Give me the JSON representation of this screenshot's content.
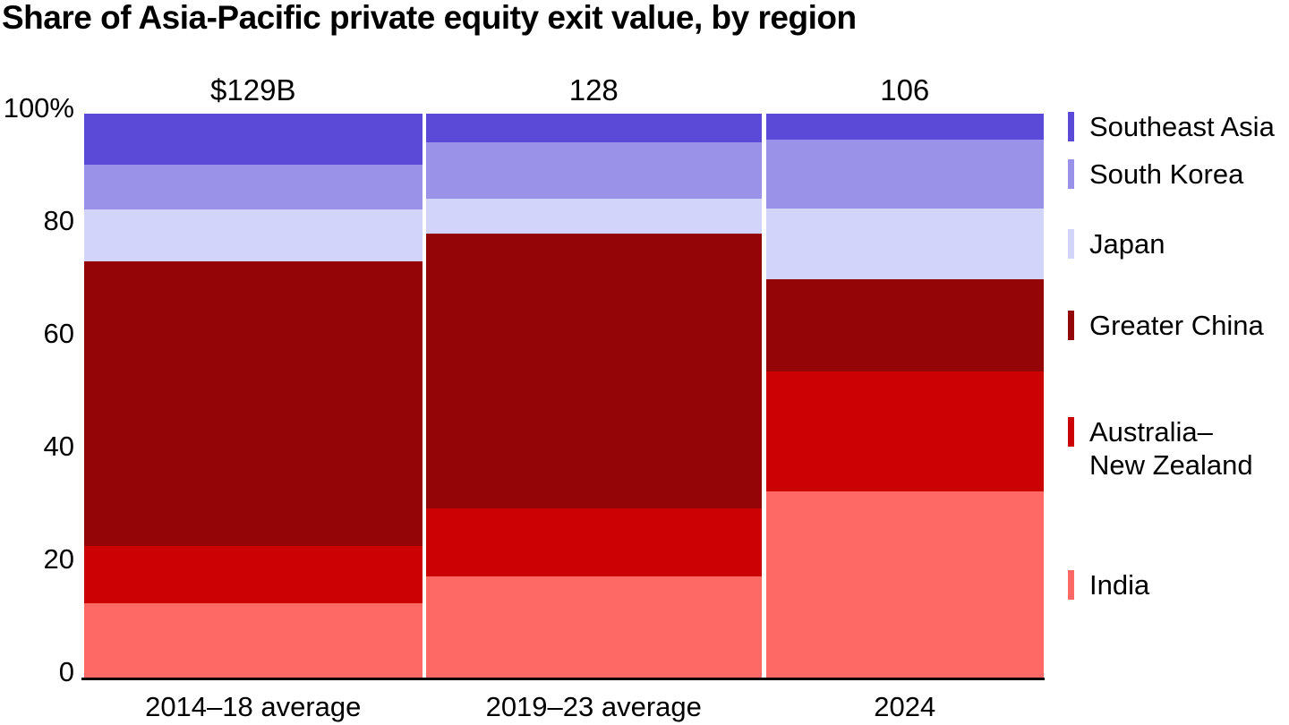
{
  "title": "Share of Asia-Pacific private equity exit value, by region",
  "chart_data": {
    "type": "bar",
    "variant": "stacked-100-percent-columns",
    "title": "Share of Asia-Pacific private equity exit value, by region",
    "categories": [
      "2014–18 average",
      "2019–23 average",
      "2024"
    ],
    "bar_total_labels": [
      "$129B",
      "128",
      "106"
    ],
    "stack_order": "first series on top",
    "series": [
      {
        "name": "Southeast Asia",
        "legend_lines": [
          "Southeast Asia"
        ],
        "color": "#5b49d7",
        "values": [
          9.0,
          5.0,
          4.6
        ]
      },
      {
        "name": "South Korea",
        "legend_lines": [
          "South Korea"
        ],
        "color": "#9a91e8",
        "values": [
          8.0,
          10.0,
          12.2
        ]
      },
      {
        "name": "Japan",
        "legend_lines": [
          "Japan"
        ],
        "color": "#d3d4f9",
        "values": [
          9.2,
          6.3,
          12.5
        ]
      },
      {
        "name": "Greater China",
        "legend_lines": [
          "Greater China"
        ],
        "color": "#940508",
        "values": [
          50.5,
          48.7,
          16.4
        ]
      },
      {
        "name": "Australia–New Zealand",
        "legend_lines": [
          "Australia–",
          "New Zealand"
        ],
        "color": "#cc0103",
        "values": [
          10.2,
          12.0,
          21.3
        ]
      },
      {
        "name": "India",
        "legend_lines": [
          "India"
        ],
        "color": "#fe6965",
        "values": [
          13.1,
          18.0,
          33.0
        ]
      }
    ],
    "y_axis": {
      "min": 0,
      "max": 100,
      "unit": "%",
      "grid": false,
      "ticks": [
        {
          "value": 100,
          "label": "100%"
        },
        {
          "value": 80,
          "label": "80"
        },
        {
          "value": 60,
          "label": "60"
        },
        {
          "value": 40,
          "label": "40"
        },
        {
          "value": 20,
          "label": "20"
        },
        {
          "value": 0,
          "label": "0"
        }
      ]
    },
    "legend_position": "right",
    "axis_line_color": "#000000",
    "background_color": "#ffffff"
  }
}
